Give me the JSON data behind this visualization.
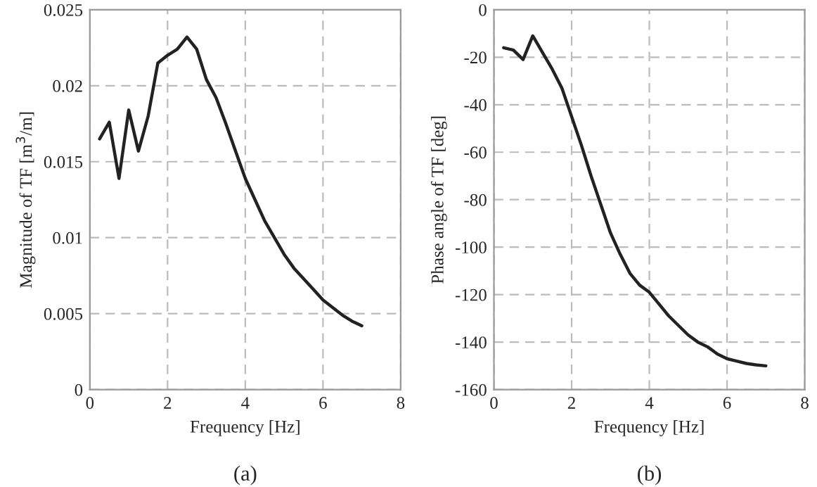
{
  "chart_data": [
    {
      "type": "line",
      "xlabel": "Frequency [Hz]",
      "ylabel": "Magnitude of TF [m$^{3}$/m]",
      "annotations": [
        "(a)"
      ],
      "x": [
        0.25,
        0.5,
        0.75,
        1.0,
        1.25,
        1.5,
        1.75,
        2.0,
        2.25,
        2.5,
        2.75,
        3.0,
        3.25,
        3.5,
        3.75,
        4.0,
        4.25,
        4.5,
        4.75,
        5.0,
        5.25,
        5.5,
        5.75,
        6.0,
        6.25,
        6.5,
        6.75,
        7.0
      ],
      "series": [
        {
          "color": "#222222",
          "values": [
            0.0165,
            0.0176,
            0.0139,
            0.0184,
            0.0157,
            0.018,
            0.0215,
            0.022,
            0.0224,
            0.0232,
            0.0224,
            0.0204,
            0.0192,
            0.0175,
            0.0157,
            0.0139,
            0.0125,
            0.0111,
            0.01,
            0.0089,
            0.008,
            0.0073,
            0.0066,
            0.0059,
            0.0054,
            0.0049,
            0.0045,
            0.0042
          ]
        }
      ],
      "xlim": [
        0,
        8
      ],
      "xticks": [
        0,
        2,
        4,
        6,
        8
      ],
      "ylim": [
        0,
        0.025
      ],
      "yticks": [
        0,
        0.005,
        0.01,
        0.015,
        0.02,
        0.025
      ],
      "grid": true,
      "line_style": "solid",
      "legend": false
    },
    {
      "type": "line",
      "xlabel": "Frequency [Hz]",
      "ylabel": "Phase angle of TF [deg]",
      "annotations": [
        "(b)"
      ],
      "x": [
        0.25,
        0.5,
        0.75,
        1.0,
        1.25,
        1.5,
        1.75,
        2.0,
        2.25,
        2.5,
        2.75,
        3.0,
        3.25,
        3.5,
        3.75,
        4.0,
        4.25,
        4.5,
        4.75,
        5.0,
        5.25,
        5.5,
        5.75,
        6.0,
        6.25,
        6.5,
        6.75,
        7.0
      ],
      "series": [
        {
          "color": "#222222",
          "values": [
            -16,
            -17,
            -21,
            -11,
            -18,
            -25,
            -33,
            -45,
            -57,
            -70,
            -82,
            -94,
            -103,
            -111,
            -116,
            -119,
            -124,
            -129,
            -133,
            -137,
            -140,
            -142,
            -145,
            -147,
            -148,
            -149,
            -149.6,
            -150
          ]
        }
      ],
      "xlim": [
        0,
        8
      ],
      "xticks": [
        0,
        2,
        4,
        6,
        8
      ],
      "ylim": [
        -160,
        0
      ],
      "yticks": [
        -160,
        -140,
        -120,
        -100,
        -80,
        -60,
        -40,
        -20,
        0
      ],
      "grid": true,
      "line_style": "solid",
      "legend": false
    }
  ]
}
